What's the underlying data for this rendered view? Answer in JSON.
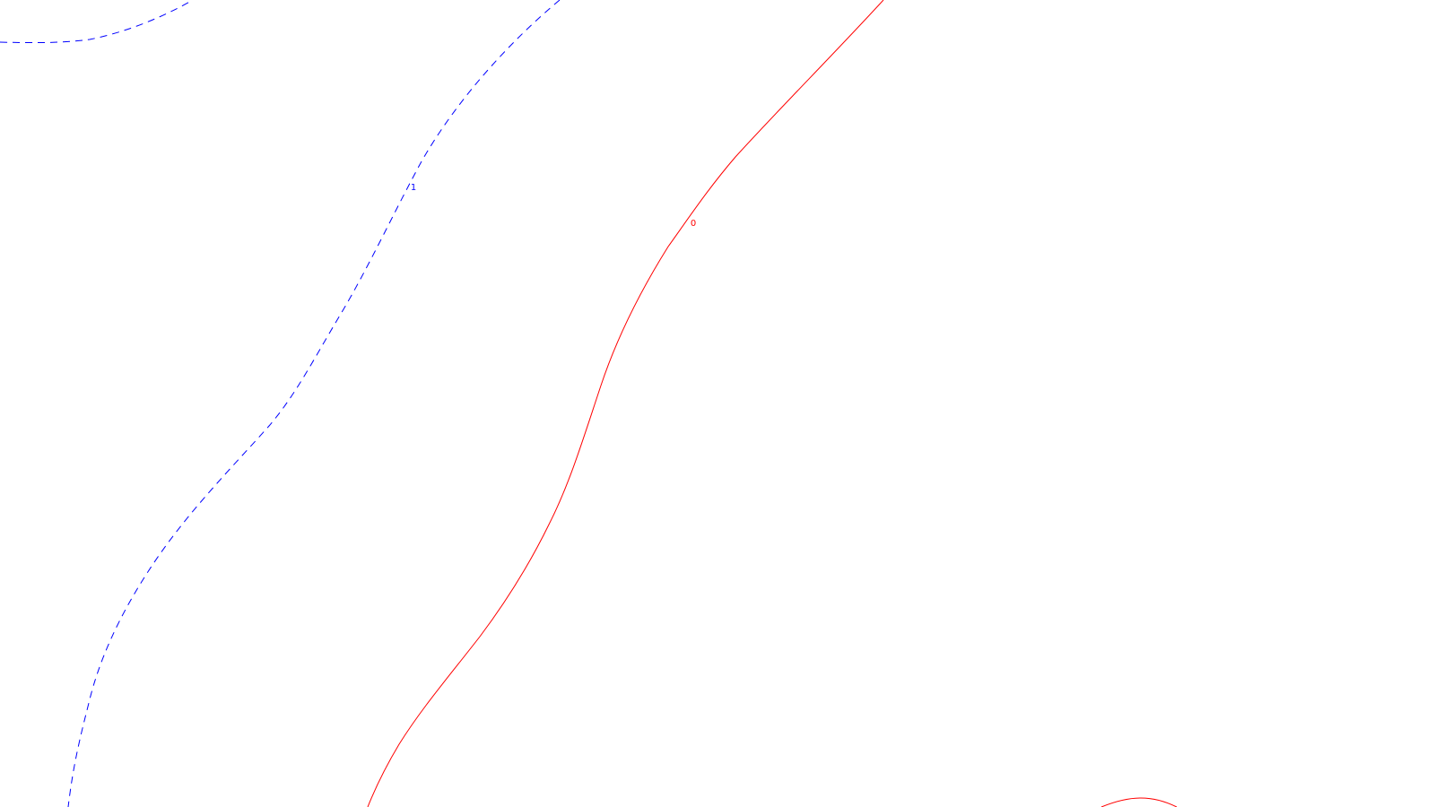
{
  "chart_data": {
    "type": "line",
    "series": [
      {
        "label": "1",
        "color": "#0000ff",
        "style": "dashed"
      },
      {
        "label": "0",
        "color": "#ff0000",
        "style": "solid"
      },
      {
        "label": "",
        "color": "#ff0000",
        "style": "solid"
      }
    ]
  }
}
